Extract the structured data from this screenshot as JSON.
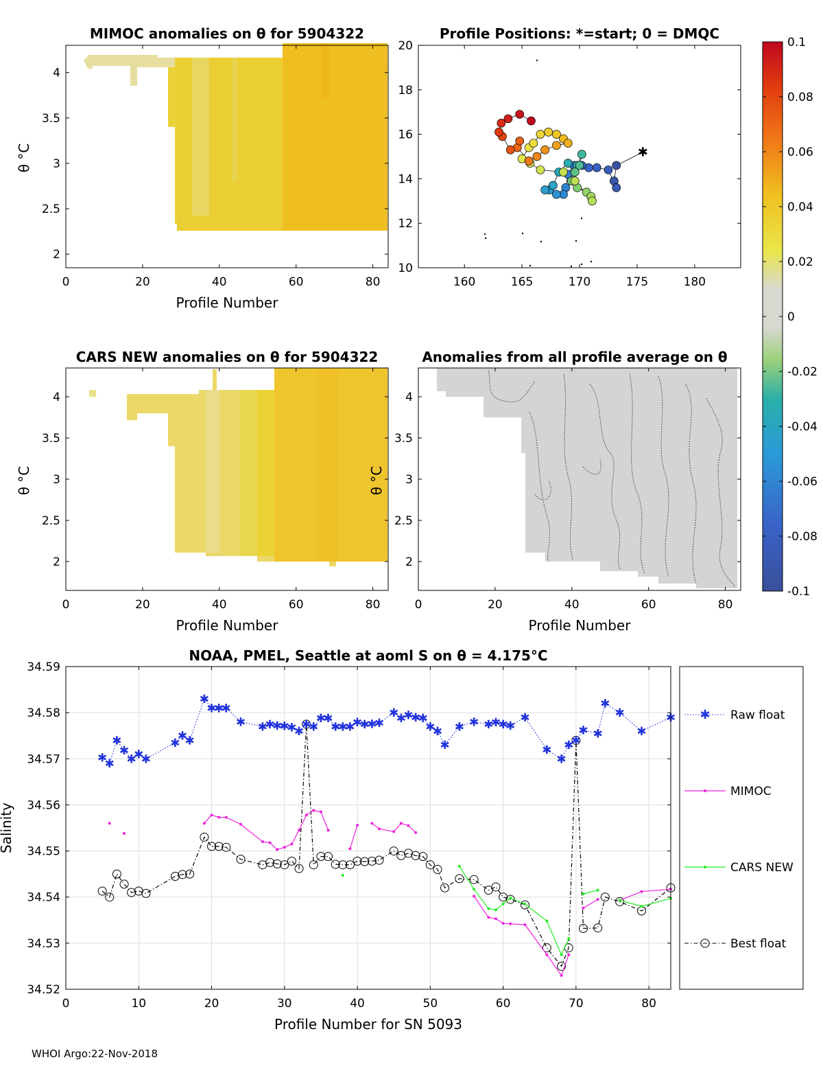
{
  "colors": {
    "raw": "#2233dd",
    "mimoc": "#ee22dd",
    "cars": "#22ee22",
    "best": "#000000",
    "grid": "#dddddd"
  },
  "footer": "WHOI Argo:22-Nov-2018",
  "chart_data": [
    {
      "type": "heatmap",
      "id": "mimoc",
      "title": "MIMOC anomalies on θ  for 5904322",
      "xlabel": "Profile Number",
      "ylabel": "θ °C",
      "xlim": [
        0,
        84
      ],
      "ylim": [
        1.85,
        4.3
      ],
      "xticks": [
        "0",
        "20",
        "40",
        "60",
        "80"
      ],
      "yticks": [
        "2",
        "2.5",
        "3",
        "3.5",
        "4"
      ],
      "description_values": "anomaly approx 0.02-0.05, increasing with profile number"
    },
    {
      "type": "scatter",
      "id": "positions",
      "title": "Profile Positions: *=start; 0 = DMQC",
      "xlabel": "",
      "ylabel": "",
      "xlim": [
        156,
        184
      ],
      "ylim": [
        10,
        20
      ],
      "xticks": [
        "160",
        "165",
        "170",
        "175",
        "180"
      ],
      "yticks": [
        "10",
        "12",
        "14",
        "16",
        "18",
        "20"
      ],
      "track": [
        [
          175.5,
          15.2
        ],
        [
          173.2,
          14.6
        ],
        [
          173.0,
          13.9
        ],
        [
          173.2,
          13.6
        ],
        [
          172.5,
          14.4
        ],
        [
          171.5,
          14.5
        ],
        [
          170.8,
          14.5
        ],
        [
          170.2,
          14.6
        ],
        [
          169.5,
          14.6
        ],
        [
          169.0,
          14.2
        ],
        [
          168.8,
          13.6
        ],
        [
          168.6,
          13.3
        ],
        [
          168.0,
          13.3
        ],
        [
          167.4,
          13.5
        ],
        [
          167.0,
          13.5
        ],
        [
          167.7,
          13.7
        ],
        [
          168.2,
          14.3
        ],
        [
          169.0,
          14.7
        ],
        [
          169.8,
          14.6
        ],
        [
          170.2,
          15.1
        ],
        [
          170.0,
          14.6
        ],
        [
          169.6,
          14.3
        ],
        [
          169.3,
          13.9
        ],
        [
          169.8,
          13.6
        ],
        [
          170.6,
          13.4
        ],
        [
          171.0,
          13.2
        ],
        [
          171.1,
          13.0
        ],
        [
          169.6,
          13.9
        ],
        [
          168.6,
          14.3
        ],
        [
          166.6,
          14.4
        ],
        [
          165.7,
          14.7
        ],
        [
          165.0,
          14.9
        ],
        [
          165.6,
          15.4
        ],
        [
          166.0,
          15.6
        ],
        [
          166.6,
          16.0
        ],
        [
          167.3,
          16.1
        ],
        [
          168.0,
          16.0
        ],
        [
          168.6,
          15.8
        ],
        [
          169.0,
          15.6
        ],
        [
          168.0,
          15.5
        ],
        [
          167.0,
          15.3
        ],
        [
          166.3,
          15.0
        ],
        [
          165.6,
          14.8
        ],
        [
          164.6,
          15.4
        ],
        [
          164.8,
          15.7
        ],
        [
          164.0,
          15.3
        ],
        [
          163.3,
          15.9
        ],
        [
          163.0,
          16.1
        ],
        [
          163.2,
          16.5
        ],
        [
          163.8,
          16.7
        ],
        [
          164.8,
          16.9
        ],
        [
          165.8,
          16.6
        ]
      ],
      "colorbar": {
        "ticks": [
          "0.1",
          "0.08",
          "0.06",
          "0.04",
          "0.02",
          "0",
          "-0.02",
          "-0.04",
          "-0.06",
          "-0.08",
          "-0.1"
        ],
        "range": [
          -0.1,
          0.1
        ]
      }
    },
    {
      "type": "heatmap",
      "id": "cars",
      "title": "CARS NEW anomalies on θ for 5904322",
      "xlabel": "Profile Number",
      "ylabel": "θ °C",
      "xlim": [
        0,
        84
      ],
      "ylim": [
        1.65,
        4.35
      ],
      "xticks": [
        "0",
        "20",
        "40",
        "60",
        "80"
      ],
      "yticks": [
        "2",
        "2.5",
        "3",
        "3.5",
        "4"
      ]
    },
    {
      "type": "heatmap",
      "id": "profavg",
      "title": "Anomalies from all profile average on θ",
      "xlabel": "Profile Number",
      "ylabel": "θ °C",
      "xlim": [
        0,
        84
      ],
      "ylim": [
        1.65,
        4.35
      ],
      "xticks": [
        "0",
        "20",
        "40",
        "60",
        "80"
      ],
      "yticks": [
        "2",
        "2.5",
        "3",
        "3.5",
        "4"
      ]
    },
    {
      "type": "line",
      "id": "salinity",
      "title": "NOAA, PMEL, Seattle at aoml S on θ = 4.175°C",
      "xlabel": "Profile Number for SN 5093",
      "ylabel": "Salinity",
      "xlim": [
        0,
        83
      ],
      "ylim": [
        34.52,
        34.59
      ],
      "xticks": [
        "0",
        "10",
        "20",
        "30",
        "40",
        "50",
        "60",
        "70",
        "80"
      ],
      "yticks": [
        "34.52",
        "34.53",
        "34.54",
        "34.55",
        "34.56",
        "34.57",
        "34.58",
        "34.59"
      ],
      "legend": [
        "Raw float",
        "MIMOC",
        "CARS NEW",
        "Best float"
      ],
      "series": [
        {
          "name": "Raw float",
          "x": [
            5,
            6,
            7,
            8,
            9,
            10,
            11,
            15,
            16,
            17,
            19,
            20,
            21,
            22,
            24,
            27,
            28,
            29,
            30,
            31,
            32,
            33,
            34,
            35,
            36,
            37,
            38,
            39,
            40,
            41,
            42,
            43,
            45,
            46,
            47,
            48,
            49,
            50,
            51,
            52,
            54,
            56,
            58,
            59,
            60,
            61,
            63,
            66,
            68,
            69,
            70,
            71,
            73,
            74,
            76,
            79,
            83
          ],
          "y": [
            34.5703,
            34.569,
            34.574,
            34.5718,
            34.57,
            34.571,
            34.57,
            34.5735,
            34.575,
            34.574,
            34.583,
            34.581,
            34.581,
            34.581,
            34.578,
            34.577,
            34.5775,
            34.5772,
            34.5771,
            34.5768,
            34.576,
            34.5775,
            34.577,
            34.5788,
            34.5788,
            34.577,
            34.577,
            34.577,
            34.5779,
            34.5775,
            34.5776,
            34.5778,
            34.58,
            34.5788,
            34.5795,
            34.579,
            34.5788,
            34.577,
            34.576,
            34.573,
            34.577,
            34.578,
            34.5775,
            34.5779,
            34.5775,
            34.5772,
            34.579,
            34.572,
            34.57,
            34.573,
            34.574,
            34.5762,
            34.5755,
            34.582,
            34.58,
            34.576,
            34.579
          ]
        },
        {
          "name": "MIMOC",
          "segments": [
            {
              "x": [
                6
              ],
              "y": [
                34.556
              ]
            },
            {
              "x": [
                8
              ],
              "y": [
                34.5538
              ]
            },
            {
              "x": [
                19,
                20,
                21,
                22,
                24,
                27,
                28,
                29,
                30,
                31,
                32,
                33,
                34,
                35,
                36
              ],
              "y": [
                34.556,
                34.5578,
                34.5573,
                34.5573,
                34.5558,
                34.552,
                34.5518,
                34.5503,
                34.5508,
                34.5515,
                34.5545,
                34.5578,
                34.5588,
                34.5585,
                34.5545
              ]
            },
            {
              "x": [
                39,
                40
              ],
              "y": [
                34.5505,
                34.5556
              ]
            },
            {
              "x": [
                42,
                43,
                45,
                46,
                47,
                48
              ],
              "y": [
                34.556,
                34.5548,
                34.5542,
                34.556,
                34.5555,
                34.554
              ]
            },
            {
              "x": [
                56,
                58,
                59,
                60,
                61,
                63,
                66,
                68,
                69
              ],
              "y": [
                34.5402,
                34.5356,
                34.5353,
                34.5343,
                34.5342,
                34.534,
                34.5275,
                34.523,
                34.5275
              ]
            },
            {
              "x": [
                71,
                73
              ],
              "y": [
                34.5376,
                34.5395
              ]
            },
            {
              "x": [
                76,
                79,
                83
              ],
              "y": [
                34.5393,
                34.5412,
                34.5417
              ]
            }
          ]
        },
        {
          "name": "CARS NEW",
          "segments": [
            {
              "x": [
                38
              ],
              "y": [
                34.5447
              ]
            },
            {
              "x": [
                54,
                56,
                58,
                59,
                60,
                61,
                63,
                66,
                68,
                69
              ],
              "y": [
                34.5467,
                34.5417,
                34.5375,
                34.5372,
                34.5385,
                34.5398,
                34.5385,
                34.5348,
                34.5275,
                34.531
              ]
            },
            {
              "x": [
                71,
                73
              ],
              "y": [
                34.5407,
                34.5415
              ]
            },
            {
              "x": [
                76,
                79,
                83
              ],
              "y": [
                34.5393,
                34.538,
                34.5397
              ]
            }
          ]
        },
        {
          "name": "Best float",
          "x": [
            5,
            6,
            7,
            8,
            9,
            10,
            11,
            15,
            16,
            17,
            19,
            20,
            21,
            22,
            24,
            27,
            28,
            29,
            30,
            31,
            32,
            33,
            34,
            35,
            36,
            37,
            38,
            39,
            40,
            41,
            42,
            43,
            45,
            46,
            47,
            48,
            49,
            50,
            51,
            52,
            54,
            56,
            58,
            59,
            60,
            61,
            63,
            66,
            68,
            69,
            70,
            71,
            73,
            74,
            76,
            79,
            83
          ],
          "y": [
            34.5413,
            34.54,
            34.545,
            34.5428,
            34.541,
            34.5413,
            34.5408,
            34.5445,
            34.5449,
            34.545,
            34.553,
            34.551,
            34.551,
            34.5508,
            34.5482,
            34.547,
            34.5475,
            34.5472,
            34.547,
            34.5478,
            34.5462,
            34.5775,
            34.547,
            34.5488,
            34.5488,
            34.5471,
            34.547,
            34.547,
            34.5478,
            34.5477,
            34.5478,
            34.548,
            34.55,
            34.549,
            34.5495,
            34.549,
            34.5488,
            34.547,
            34.546,
            34.542,
            34.544,
            34.5438,
            34.5415,
            34.5422,
            34.54,
            34.5395,
            34.5383,
            34.529,
            34.525,
            34.529,
            34.574,
            34.5332,
            34.5333,
            34.54,
            34.539,
            34.537,
            34.542
          ]
        }
      ]
    }
  ]
}
